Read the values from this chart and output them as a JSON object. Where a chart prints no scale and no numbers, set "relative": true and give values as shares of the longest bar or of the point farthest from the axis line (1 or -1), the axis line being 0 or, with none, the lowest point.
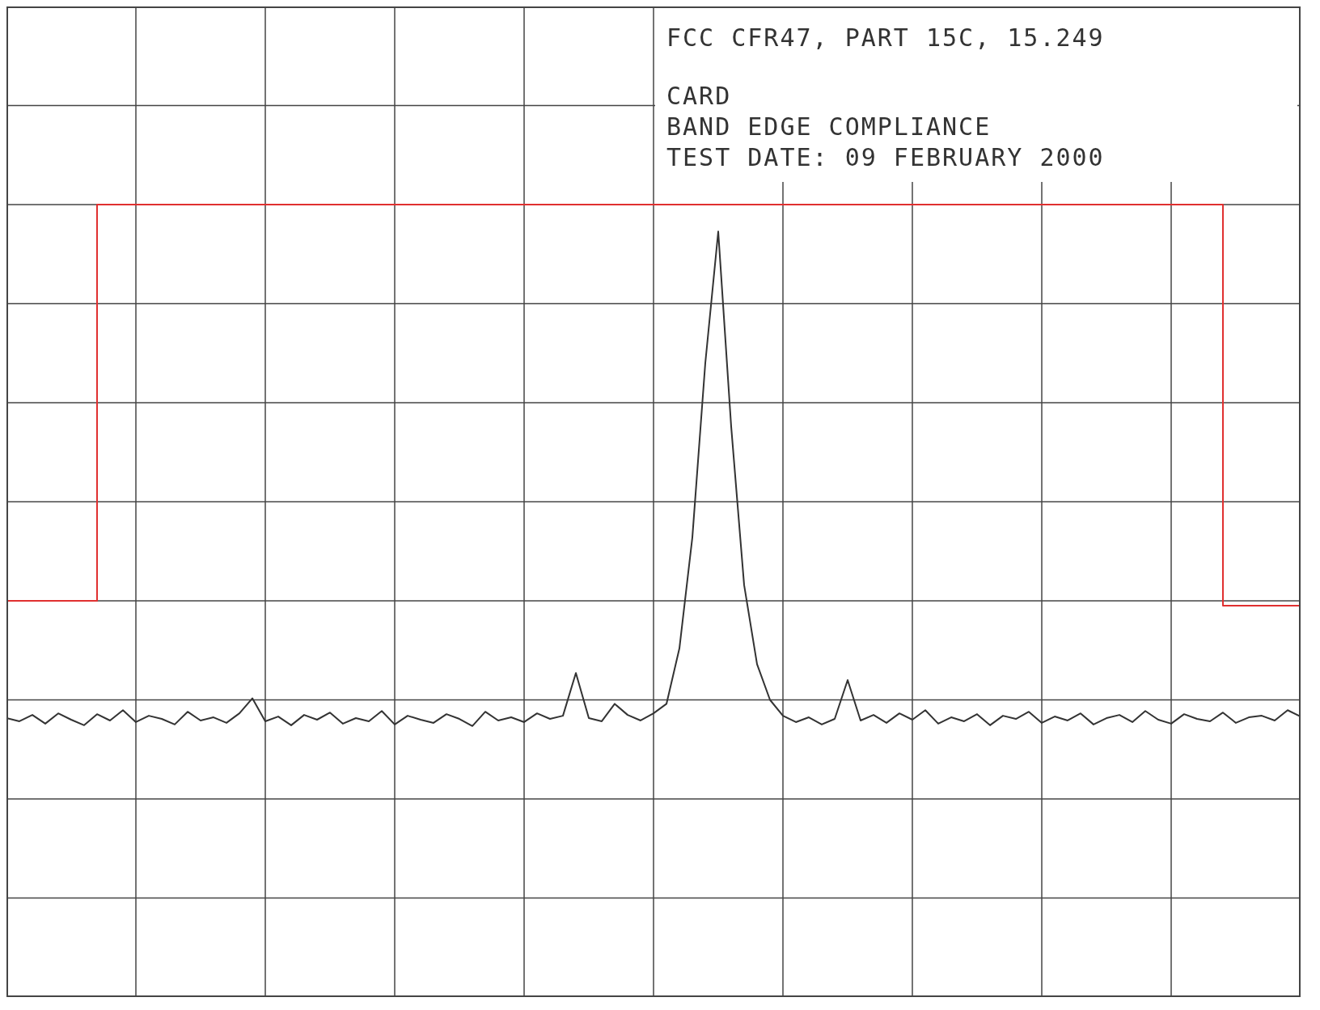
{
  "chart_data": {
    "type": "line",
    "relative": true,
    "grid": true,
    "legend": false,
    "marker": "none",
    "line_style": "solid",
    "annotations": [
      "FCC CFR47, PART 15C, 15.249",
      "CARD",
      "BAND EDGE COMPLIANCE",
      "TEST DATE: 09 FEBRUARY 2000"
    ],
    "categories": [
      null,
      null,
      null,
      null,
      null,
      null,
      null,
      null,
      null,
      null,
      null,
      null,
      null,
      null,
      null,
      null,
      null,
      null,
      null,
      null,
      null,
      null,
      null,
      null,
      null,
      null,
      null,
      null,
      null,
      null,
      null,
      null,
      null,
      null,
      null,
      null,
      null,
      null,
      null,
      null,
      null,
      null,
      null,
      null,
      null,
      null,
      null,
      null,
      null,
      null,
      null,
      null,
      null,
      null,
      null,
      null,
      null,
      null,
      null,
      null,
      null,
      null,
      null,
      null,
      null,
      null,
      null,
      null,
      null,
      null,
      null,
      null,
      null,
      null,
      null,
      null,
      null,
      null,
      null,
      null,
      null,
      null,
      null,
      null,
      null,
      null,
      null,
      null,
      null,
      null,
      null,
      null,
      null,
      null,
      null,
      null,
      null,
      null,
      null,
      null,
      null
    ],
    "series": [
      {
        "type": "step",
        "color": "#e03030",
        "values": [
          0.5,
          0.5,
          0.5,
          0.5,
          0.5,
          0.5,
          0.5,
          1,
          1,
          1,
          1,
          1,
          1,
          1,
          1,
          1,
          1,
          1,
          1,
          1,
          1,
          1,
          1,
          1,
          1,
          1,
          1,
          1,
          1,
          1,
          1,
          1,
          1,
          1,
          1,
          1,
          1,
          1,
          1,
          1,
          1,
          1,
          1,
          1,
          1,
          1,
          1,
          1,
          1,
          1,
          1,
          1,
          1,
          1,
          1,
          1,
          1,
          1,
          1,
          1,
          1,
          1,
          1,
          1,
          1,
          1,
          1,
          1,
          1,
          1,
          1,
          1,
          1,
          1,
          1,
          1,
          1,
          1,
          1,
          1,
          1,
          1,
          1,
          1,
          1,
          1,
          1,
          1,
          1,
          1,
          1,
          1,
          1,
          1,
          0.494,
          0.494,
          0.494,
          0.494,
          0.494,
          0.494,
          0.494
        ]
      },
      {
        "type": "line",
        "color": "#333333",
        "values": [
          0.352,
          0.348,
          0.356,
          0.345,
          0.358,
          0.35,
          0.343,
          0.357,
          0.349,
          0.362,
          0.347,
          0.355,
          0.351,
          0.344,
          0.36,
          0.349,
          0.353,
          0.346,
          0.358,
          0.377,
          0.348,
          0.354,
          0.343,
          0.356,
          0.35,
          0.359,
          0.345,
          0.352,
          0.348,
          0.361,
          0.344,
          0.355,
          0.35,
          0.346,
          0.357,
          0.351,
          0.342,
          0.36,
          0.349,
          0.353,
          0.347,
          0.358,
          0.351,
          0.355,
          0.409,
          0.352,
          0.348,
          0.37,
          0.356,
          0.349,
          0.358,
          0.37,
          0.44,
          0.58,
          0.8,
          0.966,
          0.72,
          0.52,
          0.42,
          0.375,
          0.355,
          0.347,
          0.353,
          0.344,
          0.351,
          0.4,
          0.349,
          0.356,
          0.346,
          0.358,
          0.35,
          0.362,
          0.345,
          0.353,
          0.348,
          0.357,
          0.343,
          0.355,
          0.351,
          0.36,
          0.346,
          0.354,
          0.349,
          0.358,
          0.344,
          0.352,
          0.356,
          0.347,
          0.361,
          0.35,
          0.345,
          0.357,
          0.351,
          0.348,
          0.359,
          0.346,
          0.353,
          0.355,
          0.349,
          0.362,
          0.354
        ]
      }
    ]
  }
}
